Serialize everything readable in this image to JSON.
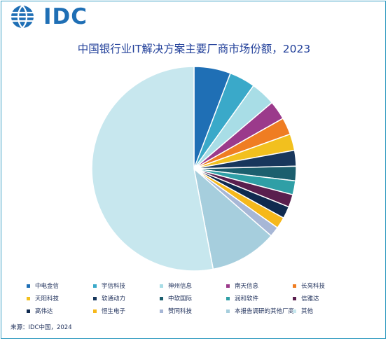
{
  "header": {
    "logo_text": "IDC"
  },
  "chart_data": {
    "type": "pie",
    "title": "中国银行业IT解决方案主要厂商市场份额，2023",
    "slices": [
      {
        "label": "中电金信",
        "value": 5.8,
        "color": "#1f6fb5"
      },
      {
        "label": "宇信科技",
        "value": 4.1,
        "color": "#3aa9c9"
      },
      {
        "label": "神州信息",
        "value": 3.9,
        "color": "#a8dde6"
      },
      {
        "label": "南天信息",
        "value": 3.0,
        "color": "#9b3a8b"
      },
      {
        "label": "长亮科技",
        "value": 2.7,
        "color": "#ef7d22"
      },
      {
        "label": "天阳科技",
        "value": 2.6,
        "color": "#f2c01e"
      },
      {
        "label": "软通动力",
        "value": 2.5,
        "color": "#18375c"
      },
      {
        "label": "中软国际",
        "value": 2.3,
        "color": "#1c5f6e"
      },
      {
        "label": "润和软件",
        "value": 2.2,
        "color": "#2f9fa6"
      },
      {
        "label": "信雅达",
        "value": 2.0,
        "color": "#5a1f4e"
      },
      {
        "label": "高伟达",
        "value": 1.9,
        "color": "#0f2a4f"
      },
      {
        "label": "恒生电子",
        "value": 1.8,
        "color": "#f6b81b"
      },
      {
        "label": "赞同科技",
        "value": 1.6,
        "color": "#a7b7d6"
      },
      {
        "label": "本报告调研的其他厂商",
        "value": 10.6,
        "color": "#a6cedd"
      },
      {
        "label": "其他",
        "value": 53.0,
        "color": "#c7e7ee"
      }
    ]
  },
  "source": "来源：IDC中国，2024"
}
